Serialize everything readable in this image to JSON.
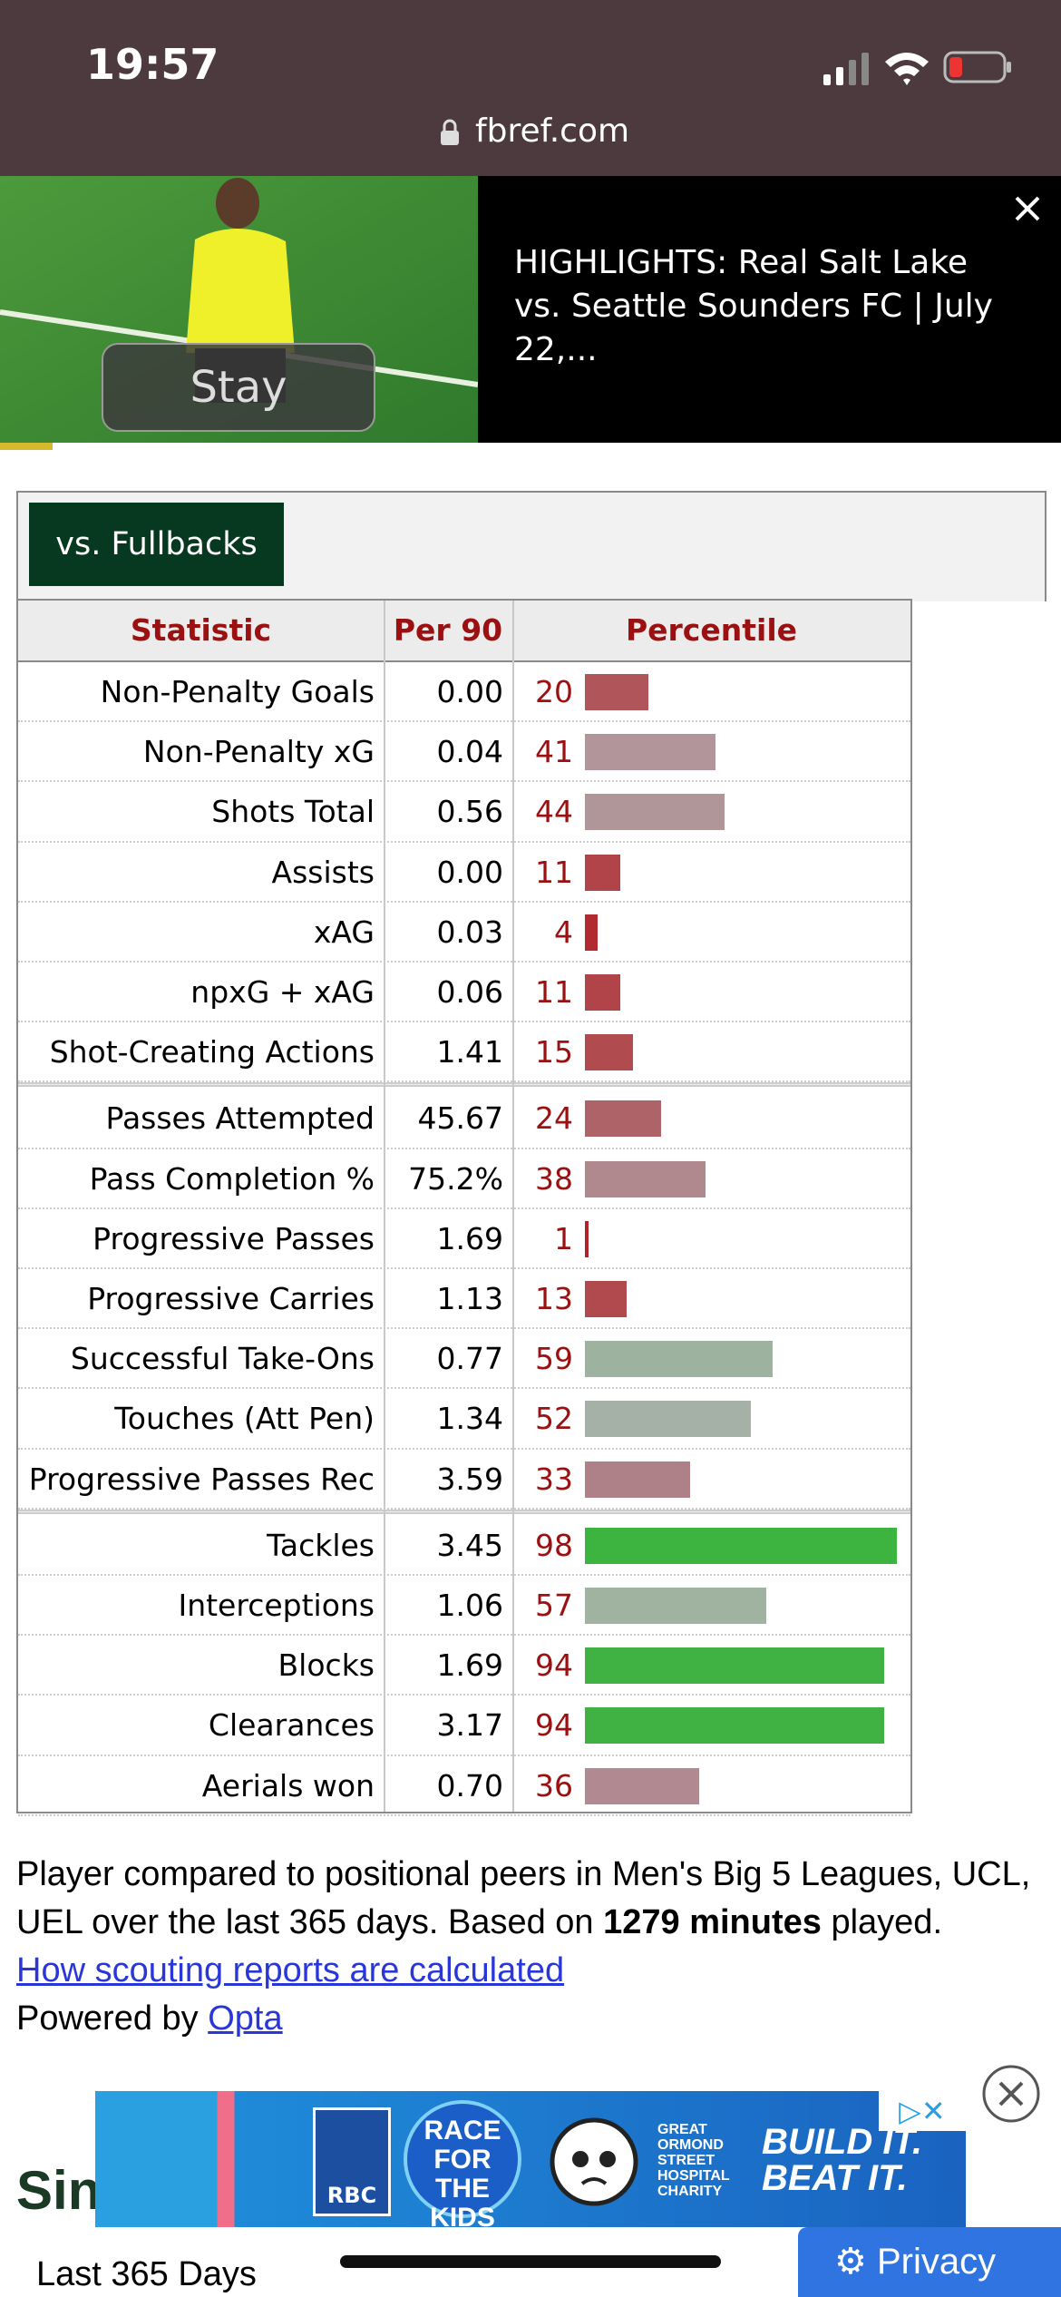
{
  "status_bar": {
    "time": "19:57",
    "url": "fbref.com"
  },
  "video_ad": {
    "button": "Stay",
    "title": "HIGHLIGHTS: Real Salt Lake vs. Seattle Sounders FC | July 22,..."
  },
  "tab": "vs. Fullbacks",
  "table": {
    "headers": [
      "Statistic",
      "Per 90",
      "Percentile"
    ],
    "groups": [
      [
        {
          "stat": "Non-Penalty Goals",
          "per90": "0.00",
          "percentile": 20,
          "color": "#b0565b"
        },
        {
          "stat": "Non-Penalty xG",
          "per90": "0.04",
          "percentile": 41,
          "color": "#b2959a"
        },
        {
          "stat": "Shots Total",
          "per90": "0.56",
          "percentile": 44,
          "color": "#b09599"
        },
        {
          "stat": "Assists",
          "per90": "0.00",
          "percentile": 11,
          "color": "#b04448"
        },
        {
          "stat": "xAG",
          "per90": "0.03",
          "percentile": 4,
          "color": "#b02a30"
        },
        {
          "stat": "npxG + xAG",
          "per90": "0.06",
          "percentile": 11,
          "color": "#b04448"
        },
        {
          "stat": "Shot-Creating Actions",
          "per90": "1.41",
          "percentile": 15,
          "color": "#b04c50"
        }
      ],
      [
        {
          "stat": "Passes Attempted",
          "per90": "45.67",
          "percentile": 24,
          "color": "#ad6367"
        },
        {
          "stat": "Pass Completion %",
          "per90": "75.2%",
          "percentile": 38,
          "color": "#b0898e"
        },
        {
          "stat": "Progressive Passes",
          "per90": "1.69",
          "percentile": 1,
          "color": "#b02228"
        },
        {
          "stat": "Progressive Carries",
          "per90": "1.13",
          "percentile": 13,
          "color": "#b04a4e"
        },
        {
          "stat": "Successful Take-Ons",
          "per90": "0.77",
          "percentile": 59,
          "color": "#9db39f"
        },
        {
          "stat": "Touches (Att Pen)",
          "per90": "1.34",
          "percentile": 52,
          "color": "#a5b0a6"
        },
        {
          "stat": "Progressive Passes Rec",
          "per90": "3.59",
          "percentile": 33,
          "color": "#ae8088"
        }
      ],
      [
        {
          "stat": "Tackles",
          "per90": "3.45",
          "percentile": 98,
          "color": "#3db340"
        },
        {
          "stat": "Interceptions",
          "per90": "1.06",
          "percentile": 57,
          "color": "#a0b2a0"
        },
        {
          "stat": "Blocks",
          "per90": "1.69",
          "percentile": 94,
          "color": "#40b244"
        },
        {
          "stat": "Clearances",
          "per90": "3.17",
          "percentile": 94,
          "color": "#40b244"
        },
        {
          "stat": "Aerials won",
          "per90": "0.70",
          "percentile": 36,
          "color": "#b08a90"
        }
      ]
    ]
  },
  "footer": {
    "text_before": "Player compared to positional peers in Men's Big 5 Leagues, UCL, UEL over the last 365 days. Based on ",
    "bold": "1279 minutes",
    "text_after": " played.",
    "link": "How scouting reports are calculated",
    "powered_by": "Powered by ",
    "opta": "Opta"
  },
  "banner_ad": {
    "rbc": "RBC",
    "race": [
      "RACE",
      "FOR THE",
      "KIDS"
    ],
    "charity": [
      "GREAT",
      "ORMOND",
      "STREET",
      "HOSPITAL",
      "CHARITY"
    ],
    "slogan": [
      "BUILD IT.",
      "BEAT IT."
    ]
  },
  "section": {
    "heading_partial": "Sin",
    "subheading": "Last 365 Days"
  },
  "privacy": "Privacy"
}
